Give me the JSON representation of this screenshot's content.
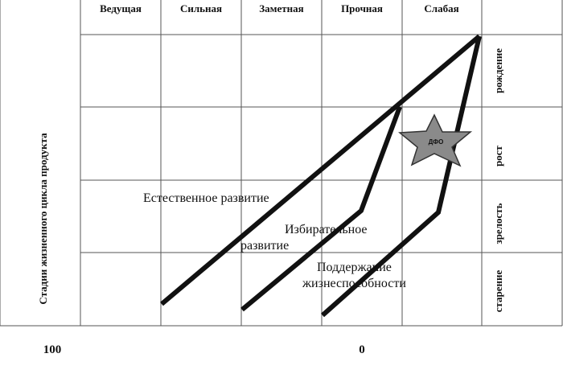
{
  "columns": [
    "Ведущая",
    "Сильная",
    "Заметная",
    "Прочная",
    "Слабая"
  ],
  "stages": [
    "рождение",
    "рост",
    "зрелость",
    "старение"
  ],
  "vertical_axis_title": "Стадии жизненного цикла продукта",
  "scale": {
    "left": "100",
    "right": "0"
  },
  "strategies": {
    "natural": "Естественное развитие",
    "selective_1": "Избирательное",
    "selective_2": "развитие",
    "support_1": "Поддержание",
    "support_2": "жизнеспособности"
  },
  "marker": {
    "label": "ДФО",
    "color": "#8a8a8a"
  }
}
